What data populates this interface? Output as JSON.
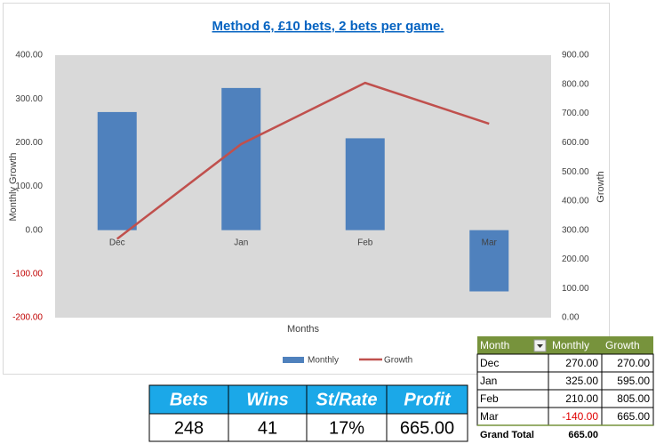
{
  "chart_data": {
    "type": "bar",
    "title": "Method 6, £10 bets, 2 bets per game.",
    "x_label": "Months",
    "y_label": "Monthly Growth",
    "y2_label": "Growth",
    "categories": [
      "Dec",
      "Jan",
      "Feb",
      "Mar"
    ],
    "series": [
      {
        "name": "Monthly",
        "type": "bar",
        "color": "#4f81bd",
        "values": [
          270,
          325,
          210,
          -140
        ]
      },
      {
        "name": "Growth",
        "type": "line",
        "color": "#c0504d",
        "axis": "y2",
        "values": [
          270,
          595,
          805,
          665
        ]
      }
    ],
    "ylim": [
      -200,
      400
    ],
    "yticks": [
      {
        "value": -200,
        "label": "-200.00"
      },
      {
        "value": -100,
        "label": "-100.00"
      },
      {
        "value": 0,
        "label": "0.00"
      },
      {
        "value": 100,
        "label": "100.00"
      },
      {
        "value": 200,
        "label": "200.00"
      },
      {
        "value": 300,
        "label": "300.00"
      },
      {
        "value": 400,
        "label": "400.00"
      }
    ],
    "y2lim": [
      0,
      900
    ],
    "y2ticks": [
      {
        "value": 0,
        "label": "0.00"
      },
      {
        "value": 100,
        "label": "100.00"
      },
      {
        "value": 200,
        "label": "200.00"
      },
      {
        "value": 300,
        "label": "300.00"
      },
      {
        "value": 400,
        "label": "400.00"
      },
      {
        "value": 500,
        "label": "500.00"
      },
      {
        "value": 600,
        "label": "600.00"
      },
      {
        "value": 700,
        "label": "700.00"
      },
      {
        "value": 800,
        "label": "800.00"
      },
      {
        "value": 900,
        "label": "900.00"
      }
    ],
    "legend": "bottom"
  },
  "stats_table": {
    "headers": [
      "Bets",
      "Wins",
      "St/Rate",
      "Profit"
    ],
    "rows": [
      [
        "248",
        "41",
        "17%",
        "665.00"
      ]
    ]
  },
  "pivot_table": {
    "headers": [
      "Month",
      "Monthly",
      "Growth"
    ],
    "rows": [
      [
        "Dec",
        "270.00",
        "270.00"
      ],
      [
        "Jan",
        "325.00",
        "595.00"
      ],
      [
        "Feb",
        "210.00",
        "805.00"
      ],
      [
        "Mar",
        "-140.00",
        "665.00"
      ]
    ],
    "total": [
      "Grand Total",
      "665.00"
    ]
  }
}
